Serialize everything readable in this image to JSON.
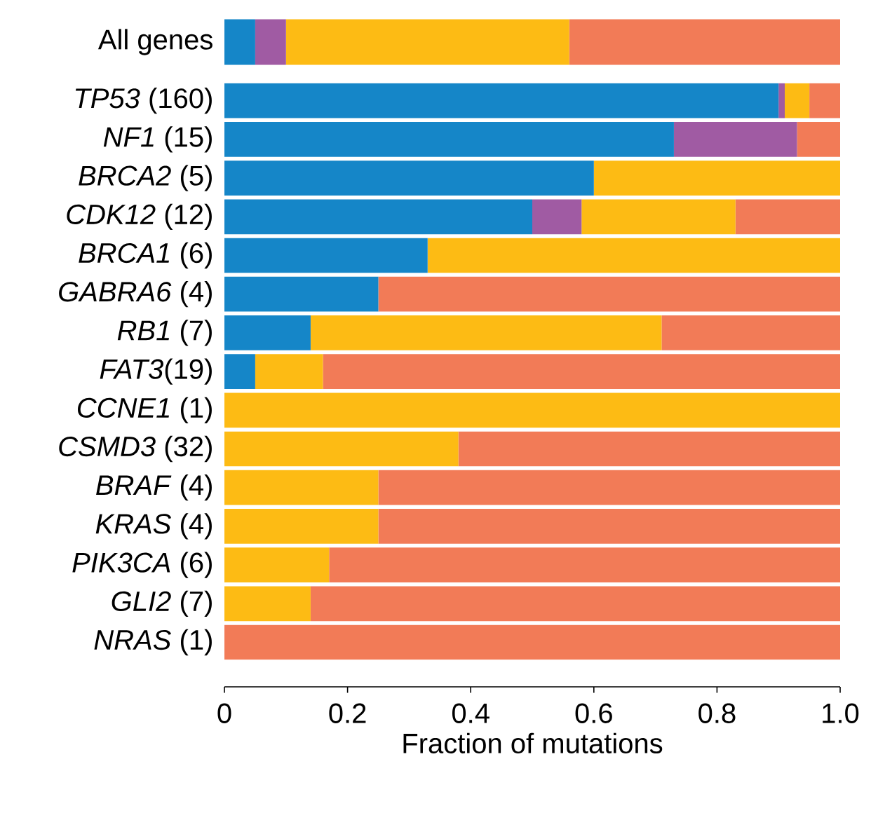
{
  "chart_data": [
    {
      "type": "bar",
      "orientation": "horizontal",
      "stacked": true,
      "categories": [
        "All genes"
      ],
      "xlim": [
        0,
        1
      ],
      "tick_labels": "y",
      "series": [
        {
          "color": "#1586c8",
          "values": [
            0.05
          ]
        },
        {
          "color": "#a05ba3",
          "values": [
            0.05
          ]
        },
        {
          "color": "#fdbb14",
          "values": [
            0.46
          ]
        },
        {
          "color": "#f27b57",
          "values": [
            0.44
          ]
        }
      ]
    },
    {
      "type": "bar",
      "orientation": "horizontal",
      "stacked": true,
      "xlabel": "Fraction of mutations",
      "categories": [
        "*TP53* (160)",
        "*NF1* (15)",
        "*BRCA2* (5)",
        "*CDK12* (12)",
        "*BRCA1* (6)",
        "*GABRA6* (4)",
        "*RB1* (7)",
        "*FAT3*(19)",
        "*CCNE1* (1)",
        "*CSMD3* (32)",
        "*BRAF* (4)",
        "*KRAS* (4)",
        "*PIK3CA* (6)",
        "*GLI2* (7)",
        "*NRAS* (1)"
      ],
      "xlim": [
        0,
        1
      ],
      "xticks": [
        0,
        0.2,
        0.4,
        0.6,
        0.8,
        {
          "value": 1,
          "label": "1.0"
        }
      ],
      "series": [
        {
          "color": "#1586c8",
          "values": [
            0.9,
            0.73,
            0.6,
            0.5,
            0.33,
            0.25,
            0.14,
            0.05,
            0,
            0,
            0,
            0,
            0,
            0,
            0
          ]
        },
        {
          "color": "#a05ba3",
          "values": [
            0.01,
            0.2,
            0,
            0.08,
            0,
            0,
            0,
            0,
            0,
            0,
            0,
            0,
            0,
            0,
            0
          ]
        },
        {
          "color": "#fdbb14",
          "values": [
            0.04,
            0,
            0.4,
            0.25,
            0.67,
            0,
            0.57,
            0.11,
            1,
            0.38,
            0.25,
            0.25,
            0.17,
            0.14,
            0
          ]
        },
        {
          "color": "#f27b57",
          "values": [
            0.05,
            0.07,
            0,
            0.17,
            0,
            0.75,
            0.29,
            0.84,
            0,
            0.62,
            0.75,
            0.75,
            0.83,
            0.86,
            1
          ]
        }
      ]
    }
  ]
}
